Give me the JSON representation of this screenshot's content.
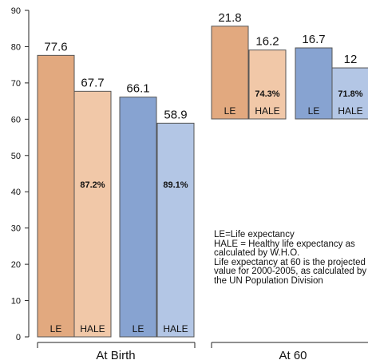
{
  "chart_data": {
    "type": "bar",
    "ylim": [
      0,
      90
    ],
    "yticks": [
      "0",
      "10",
      "20",
      "30",
      "40",
      "50",
      "60",
      "70",
      "80",
      "90"
    ],
    "groups": [
      {
        "label": "At Birth",
        "bars": [
          {
            "label": "LE",
            "value": 77.6,
            "value_text": "77.6",
            "pct": "",
            "color": "#e2a97f"
          },
          {
            "label": "HALE",
            "value": 67.7,
            "value_text": "67.7",
            "pct": "87.2%",
            "color": "#f1c8a8"
          },
          {
            "label": "LE",
            "value": 66.1,
            "value_text": "66.1",
            "pct": "",
            "color": "#87a3d1"
          },
          {
            "label": "HALE",
            "value": 58.9,
            "value_text": "58.9",
            "pct": "89.1%",
            "color": "#b3c6e5"
          }
        ]
      },
      {
        "label": "At 60",
        "bars": [
          {
            "label": "LE",
            "value": 21.8,
            "value_text": "21.8",
            "pct": "",
            "color": "#e2a97f"
          },
          {
            "label": "HALE",
            "value": 16.2,
            "value_text": "16.2",
            "pct": "74.3%",
            "color": "#f1c8a8"
          },
          {
            "label": "LE",
            "value": 16.7,
            "value_text": "16.7",
            "pct": "",
            "color": "#87a3d1"
          },
          {
            "label": "HALE",
            "value": 12,
            "value_text": "12",
            "pct": "71.8%",
            "color": "#b3c6e5"
          }
        ]
      }
    ],
    "notes": [
      "LE=Life expectancy",
      "HALE = Healthy life expectancy as calculated by W.H.O.",
      "Life expectancy at 60 is the projected value for 2000-2005, as calculated by the UN Population Division"
    ]
  }
}
